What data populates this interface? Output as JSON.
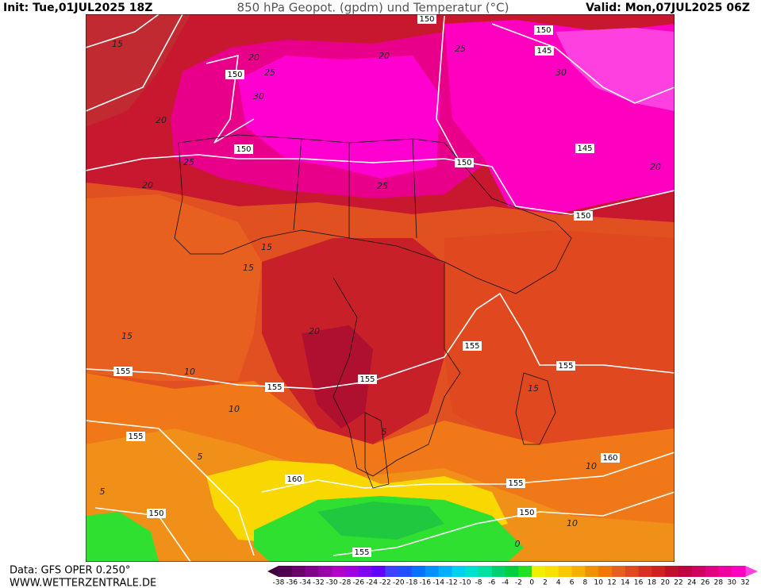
{
  "header": {
    "init": "Init: Tue,01JUL2025 18Z",
    "title": "850 hPa Geopot. (gpdm) und Temperatur (°C)",
    "valid": "Valid: Mon,07JUL2025 06Z"
  },
  "footer": {
    "data": "Data: GFS OPER 0.250°",
    "website": "WWW.WETTERZENTRALE.DE"
  },
  "map": {
    "isohypse_labels": [
      150,
      150,
      145,
      150,
      150,
      145,
      150,
      150,
      155,
      155,
      155,
      155,
      155,
      155,
      160,
      160,
      155,
      150,
      150,
      155
    ],
    "temperature_labels": [
      20,
      25,
      30,
      20,
      25,
      30,
      20,
      25,
      20,
      25,
      20,
      15,
      15,
      15,
      20,
      15,
      10,
      10,
      15,
      10,
      5,
      5,
      0,
      5,
      10
    ]
  },
  "colorbar": {
    "ticks": [
      -38,
      -36,
      -34,
      -32,
      -30,
      -28,
      -26,
      -24,
      -22,
      -20,
      -18,
      -16,
      -14,
      -12,
      -10,
      -8,
      -6,
      -4,
      -2,
      0,
      2,
      4,
      6,
      8,
      10,
      12,
      14,
      16,
      18,
      20,
      22,
      24,
      26,
      28,
      30,
      32
    ],
    "colors": [
      "#500050",
      "#6a006a",
      "#80008a",
      "#9a00a8",
      "#b000c8",
      "#a000e0",
      "#8000f0",
      "#6000f8",
      "#4040ff",
      "#2050ff",
      "#0070ff",
      "#0090ff",
      "#00b0ff",
      "#00d0f0",
      "#00e0d0",
      "#00e0a0",
      "#00d070",
      "#00d040",
      "#20e020",
      "#f0f000",
      "#f8e000",
      "#f8c800",
      "#f8b000",
      "#f09000",
      "#f07800",
      "#e86020",
      "#e04820",
      "#d83020",
      "#d02020",
      "#c01028",
      "#c00040",
      "#d00060",
      "#e00080",
      "#f000a0",
      "#ff00c0"
    ],
    "low_color": "#400040",
    "high_color": "#ff40e0"
  }
}
